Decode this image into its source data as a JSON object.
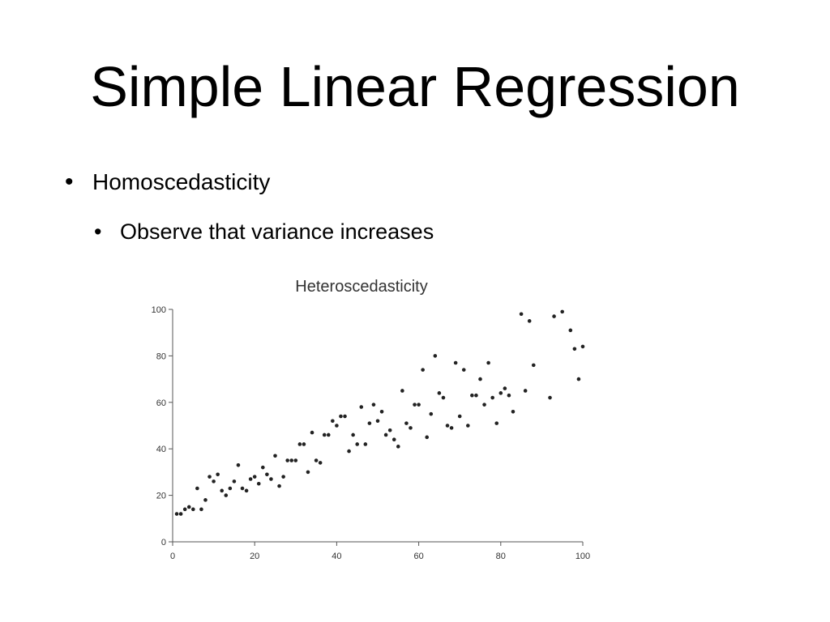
{
  "slide": {
    "title": "Simple Linear Regression",
    "bullets": [
      {
        "text": "Homoscedasticity",
        "level": 1
      },
      {
        "text": "Observe that variance increases",
        "level": 2
      }
    ]
  },
  "chart_data": {
    "type": "scatter",
    "title": "Heteroscedasticity",
    "xlabel": "",
    "ylabel": "",
    "xlim": [
      0,
      100
    ],
    "ylim": [
      0,
      100
    ],
    "xticks": [
      0,
      20,
      40,
      60,
      80,
      100
    ],
    "yticks": [
      0,
      20,
      40,
      60,
      80,
      100
    ],
    "grid": false,
    "point_color": "#222222",
    "points": [
      [
        1,
        12
      ],
      [
        2,
        12
      ],
      [
        3,
        14
      ],
      [
        4,
        15
      ],
      [
        5,
        14
      ],
      [
        6,
        23
      ],
      [
        7,
        14
      ],
      [
        8,
        18
      ],
      [
        9,
        28
      ],
      [
        10,
        26
      ],
      [
        11,
        29
      ],
      [
        12,
        22
      ],
      [
        13,
        20
      ],
      [
        14,
        23
      ],
      [
        15,
        26
      ],
      [
        16,
        33
      ],
      [
        17,
        23
      ],
      [
        18,
        22
      ],
      [
        19,
        27
      ],
      [
        20,
        28
      ],
      [
        21,
        25
      ],
      [
        22,
        32
      ],
      [
        23,
        29
      ],
      [
        24,
        27
      ],
      [
        25,
        37
      ],
      [
        26,
        24
      ],
      [
        27,
        28
      ],
      [
        28,
        35
      ],
      [
        29,
        35
      ],
      [
        30,
        35
      ],
      [
        31,
        42
      ],
      [
        32,
        42
      ],
      [
        33,
        30
      ],
      [
        34,
        47
      ],
      [
        35,
        35
      ],
      [
        36,
        34
      ],
      [
        37,
        46
      ],
      [
        38,
        46
      ],
      [
        39,
        52
      ],
      [
        40,
        50
      ],
      [
        41,
        54
      ],
      [
        42,
        54
      ],
      [
        43,
        39
      ],
      [
        44,
        46
      ],
      [
        45,
        42
      ],
      [
        46,
        58
      ],
      [
        47,
        42
      ],
      [
        48,
        51
      ],
      [
        49,
        59
      ],
      [
        50,
        52
      ],
      [
        51,
        56
      ],
      [
        52,
        46
      ],
      [
        53,
        48
      ],
      [
        54,
        44
      ],
      [
        55,
        41
      ],
      [
        56,
        65
      ],
      [
        57,
        51
      ],
      [
        58,
        49
      ],
      [
        59,
        59
      ],
      [
        60,
        59
      ],
      [
        61,
        74
      ],
      [
        62,
        45
      ],
      [
        63,
        55
      ],
      [
        64,
        80
      ],
      [
        65,
        64
      ],
      [
        66,
        62
      ],
      [
        67,
        50
      ],
      [
        68,
        49
      ],
      [
        69,
        77
      ],
      [
        70,
        54
      ],
      [
        71,
        74
      ],
      [
        72,
        50
      ],
      [
        73,
        63
      ],
      [
        74,
        63
      ],
      [
        75,
        70
      ],
      [
        76,
        59
      ],
      [
        77,
        77
      ],
      [
        78,
        62
      ],
      [
        79,
        51
      ],
      [
        80,
        64
      ],
      [
        81,
        66
      ],
      [
        82,
        63
      ],
      [
        83,
        56
      ],
      [
        85,
        98
      ],
      [
        86,
        65
      ],
      [
        87,
        95
      ],
      [
        88,
        76
      ],
      [
        92,
        62
      ],
      [
        93,
        97
      ],
      [
        95,
        99
      ],
      [
        97,
        91
      ],
      [
        98,
        83
      ],
      [
        99,
        70
      ],
      [
        100,
        84
      ]
    ]
  }
}
